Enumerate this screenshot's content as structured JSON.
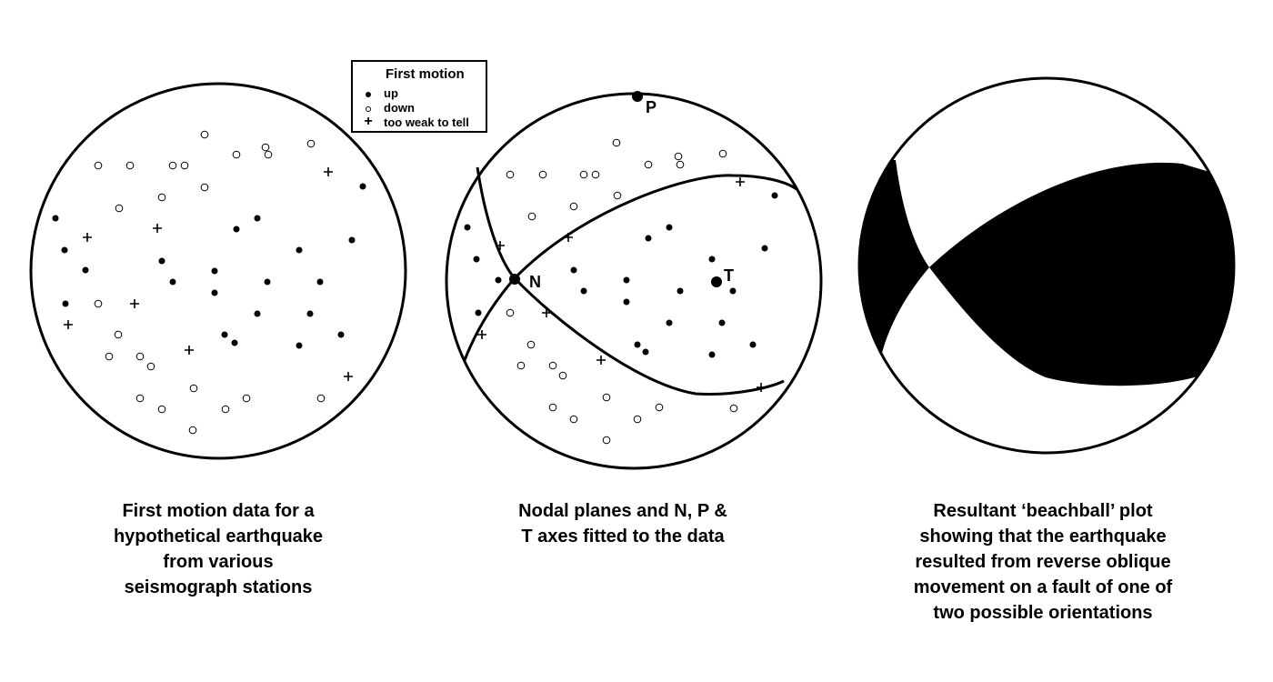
{
  "legend": {
    "title": "First motion",
    "items": [
      {
        "symbol": "filled-circle",
        "label": "up"
      },
      {
        "symbol": "open-circle",
        "label": "down"
      },
      {
        "symbol": "plus",
        "label": "too weak to tell"
      }
    ]
  },
  "axes": {
    "n": "N",
    "p": "P",
    "t": "T"
  },
  "captions": {
    "left": [
      "First motion data for a",
      "hypothetical earthquake",
      "from various",
      "seismograph stations"
    ],
    "middle": [
      "Nodal planes and N, P &",
      "T axes fitted to the data"
    ],
    "right": [
      "Resultant ‘beachball’ plot",
      "showing that the earthquake",
      "resulted from reverse oblique",
      "movement on a fault of one of",
      "two possible orientations"
    ]
  },
  "colors": {
    "ink": "#000000",
    "background": "#ffffff"
  }
}
